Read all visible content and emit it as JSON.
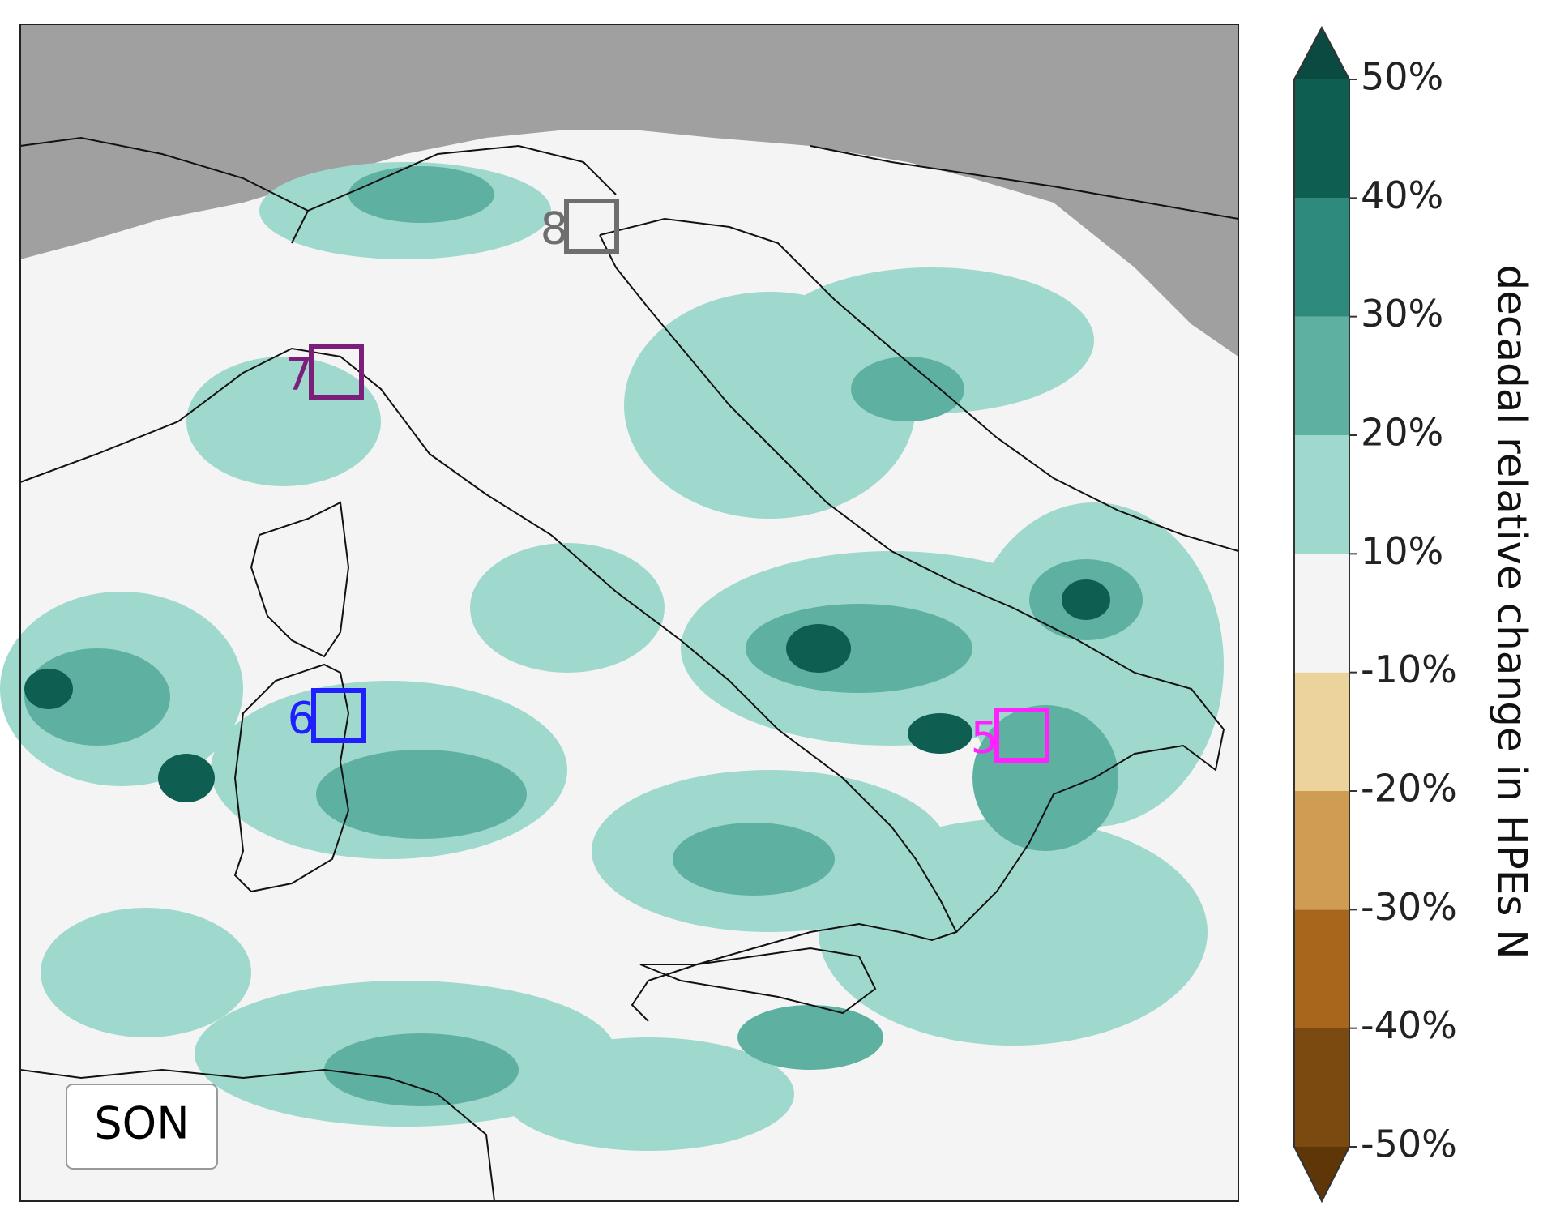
{
  "map": {
    "season_label": "SON",
    "regions": [
      {
        "label": "8",
        "color": "#6e6e6e"
      },
      {
        "label": "7",
        "color": "#7b1f7b"
      },
      {
        "label": "6",
        "color": "#1f1fff"
      },
      {
        "label": "5",
        "color": "#ff22ff"
      }
    ]
  },
  "colorbar": {
    "label": "decadal relative change in HPEs N",
    "ticks": [
      {
        "value": -50,
        "label": "-50%"
      },
      {
        "value": -40,
        "label": "-40%"
      },
      {
        "value": -30,
        "label": "-30%"
      },
      {
        "value": -20,
        "label": "-20%"
      },
      {
        "value": -10,
        "label": "-10%"
      },
      {
        "value": 10,
        "label": "10%"
      },
      {
        "value": 20,
        "label": "20%"
      },
      {
        "value": 30,
        "label": "30%"
      },
      {
        "value": 40,
        "label": "40%"
      },
      {
        "value": 50,
        "label": "50%"
      }
    ],
    "colors": [
      "#7a4a10",
      "#a8661c",
      "#cf9c54",
      "#ecd39c",
      "#f4f4f4",
      "#9fd8cc",
      "#5eb0a1",
      "#2e8a7c",
      "#0f5e52"
    ],
    "under_color": "#5e3608",
    "over_color": "#0a4a40"
  }
}
